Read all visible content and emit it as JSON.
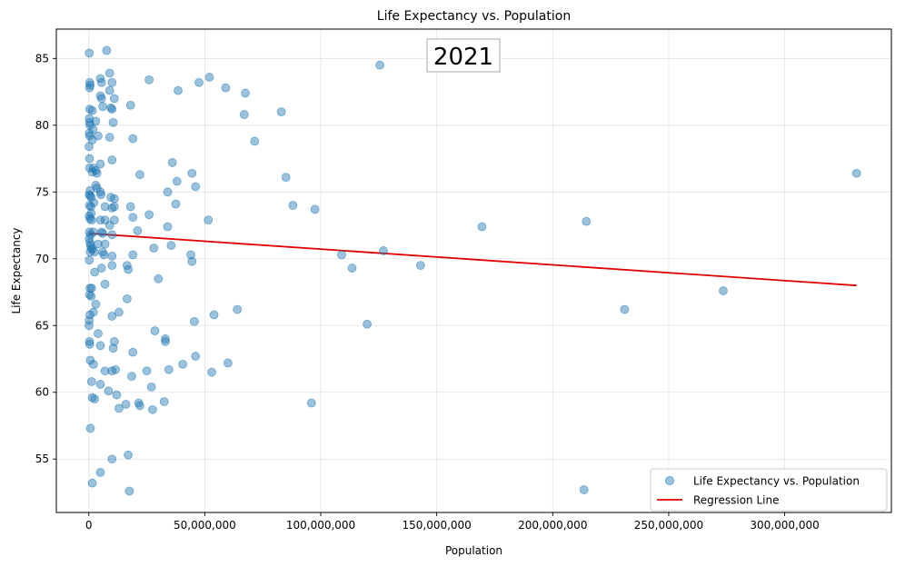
{
  "chart_data": {
    "type": "scatter",
    "title": "Life Expectancy vs. Population",
    "xlabel": "Population",
    "ylabel": "Life Expectancy",
    "annotation": "2021",
    "xlim": [
      -14000000,
      346000000
    ],
    "ylim": [
      51,
      87.2
    ],
    "xticks": [
      {
        "value": 0,
        "label": "0"
      },
      {
        "value": 50000000,
        "label": "50,000,000"
      },
      {
        "value": 100000000,
        "label": "100,000,000"
      },
      {
        "value": 150000000,
        "label": "150,000,000"
      },
      {
        "value": 200000000,
        "label": "200,000,000"
      },
      {
        "value": 250000000,
        "label": "250,000,000"
      },
      {
        "value": 300000000,
        "label": "300,000,000"
      }
    ],
    "yticks": [
      {
        "value": 55,
        "label": "55"
      },
      {
        "value": 60,
        "label": "60"
      },
      {
        "value": 65,
        "label": "65"
      },
      {
        "value": 70,
        "label": "70"
      },
      {
        "value": 75,
        "label": "75"
      },
      {
        "value": 80,
        "label": "80"
      },
      {
        "value": 85,
        "label": "85"
      }
    ],
    "grid": true,
    "legend": {
      "placement": "bottom-right",
      "entries": [
        {
          "label": "Life Expectancy vs. Population",
          "kind": "marker",
          "color": "#1f77b4"
        },
        {
          "label": "Regression Line",
          "kind": "line",
          "color": "#e00000"
        }
      ]
    },
    "series": [
      {
        "name": "Life Expectancy vs. Population",
        "kind": "scatter",
        "color": "#1f77b4",
        "points": [
          [
            200000,
            85.4
          ],
          [
            7700000,
            85.6
          ],
          [
            400000,
            83.2
          ],
          [
            300000,
            82.8
          ],
          [
            600000,
            83.0
          ],
          [
            5000000,
            83.5
          ],
          [
            5500000,
            83.2
          ],
          [
            9000000,
            83.9
          ],
          [
            10000000,
            83.2
          ],
          [
            9000000,
            82.6
          ],
          [
            5000000,
            82.2
          ],
          [
            5500000,
            82.0
          ],
          [
            11000000,
            82.0
          ],
          [
            6000000,
            81.4
          ],
          [
            9500000,
            81.3
          ],
          [
            10000000,
            81.2
          ],
          [
            18000000,
            81.5
          ],
          [
            400000,
            81.2
          ],
          [
            1500000,
            81.1
          ],
          [
            200000,
            80.5
          ],
          [
            300000,
            80.2
          ],
          [
            500000,
            80.0
          ],
          [
            3000000,
            80.3
          ],
          [
            10500000,
            80.2
          ],
          [
            1800000,
            79.7
          ],
          [
            200000,
            79.4
          ],
          [
            400000,
            79.2
          ],
          [
            4000000,
            79.2
          ],
          [
            9000000,
            79.1
          ],
          [
            1500000,
            78.9
          ],
          [
            19000000,
            79.0
          ],
          [
            100000,
            78.4
          ],
          [
            300000,
            77.5
          ],
          [
            5000000,
            77.1
          ],
          [
            10000000,
            77.4
          ],
          [
            300000,
            76.8
          ],
          [
            2000000,
            76.8
          ],
          [
            3000000,
            76.6
          ],
          [
            3500000,
            76.4
          ],
          [
            22000000,
            76.3
          ],
          [
            1500000,
            76.5
          ],
          [
            500000,
            75.1
          ],
          [
            200000,
            74.8
          ],
          [
            600000,
            74.7
          ],
          [
            1000000,
            74.6
          ],
          [
            3000000,
            75.5
          ],
          [
            5000000,
            75.0
          ],
          [
            5200000,
            74.8
          ],
          [
            9500000,
            74.6
          ],
          [
            11000000,
            74.5
          ],
          [
            300000,
            74.0
          ],
          [
            900000,
            73.9
          ],
          [
            2200000,
            74.2
          ],
          [
            3500000,
            75.3
          ],
          [
            11000000,
            73.9
          ],
          [
            10000000,
            73.8
          ],
          [
            7000000,
            73.9
          ],
          [
            18000000,
            73.9
          ],
          [
            200000,
            73.2
          ],
          [
            500000,
            73.0
          ],
          [
            1000000,
            73.4
          ],
          [
            1200000,
            72.9
          ],
          [
            5000000,
            72.9
          ],
          [
            7000000,
            72.9
          ],
          [
            11000000,
            72.9
          ],
          [
            9000000,
            72.5
          ],
          [
            19000000,
            73.1
          ],
          [
            300000,
            72.0
          ],
          [
            800000,
            71.8
          ],
          [
            2000000,
            72.0
          ],
          [
            5500000,
            72.0
          ],
          [
            6000000,
            71.9
          ],
          [
            10000000,
            71.8
          ],
          [
            21000000,
            72.1
          ],
          [
            200000,
            71.5
          ],
          [
            500000,
            71.2
          ],
          [
            800000,
            71.0
          ],
          [
            1000000,
            70.8
          ],
          [
            600000,
            70.5
          ],
          [
            1500000,
            70.7
          ],
          [
            2500000,
            70.5
          ],
          [
            4000000,
            71.1
          ],
          [
            7000000,
            71.1
          ],
          [
            6000000,
            70.5
          ],
          [
            6500000,
            70.3
          ],
          [
            10000000,
            70.2
          ],
          [
            200000,
            69.9
          ],
          [
            2500000,
            69.0
          ],
          [
            5500000,
            69.3
          ],
          [
            10000000,
            69.5
          ],
          [
            16500000,
            69.5
          ],
          [
            19000000,
            70.3
          ],
          [
            17000000,
            69.2
          ],
          [
            500000,
            67.8
          ],
          [
            1200000,
            67.8
          ],
          [
            300000,
            67.3
          ],
          [
            1000000,
            67.2
          ],
          [
            7000000,
            68.1
          ],
          [
            16500000,
            67.0
          ],
          [
            500000,
            65.8
          ],
          [
            200000,
            65.4
          ],
          [
            100000,
            65.0
          ],
          [
            2000000,
            66.0
          ],
          [
            3000000,
            66.6
          ],
          [
            10000000,
            65.7
          ],
          [
            13000000,
            66.0
          ],
          [
            300000,
            63.8
          ],
          [
            400000,
            63.6
          ],
          [
            4000000,
            64.4
          ],
          [
            5000000,
            63.5
          ],
          [
            10500000,
            63.3
          ],
          [
            11000000,
            63.8
          ],
          [
            600000,
            62.4
          ],
          [
            2000000,
            62.1
          ],
          [
            19000000,
            63.0
          ],
          [
            7000000,
            61.6
          ],
          [
            10000000,
            61.6
          ],
          [
            11500000,
            61.7
          ],
          [
            18500000,
            61.2
          ],
          [
            1200000,
            60.8
          ],
          [
            5000000,
            60.6
          ],
          [
            700000,
            57.3
          ],
          [
            1500000,
            59.6
          ],
          [
            2500000,
            59.5
          ],
          [
            8500000,
            60.1
          ],
          [
            12000000,
            59.8
          ],
          [
            13000000,
            58.8
          ],
          [
            16000000,
            59.1
          ],
          [
            17000000,
            55.3
          ],
          [
            10000000,
            55.0
          ],
          [
            5000000,
            54.0
          ],
          [
            1500000,
            53.2
          ],
          [
            17500000,
            52.6
          ],
          [
            21500000,
            59.2
          ],
          [
            22000000,
            59.0
          ],
          [
            27000000,
            60.4
          ],
          [
            25000000,
            61.6
          ],
          [
            27500000,
            58.7
          ],
          [
            28500000,
            64.6
          ],
          [
            30000000,
            68.5
          ],
          [
            33000000,
            64.0
          ],
          [
            33000000,
            63.8
          ],
          [
            32500000,
            59.3
          ],
          [
            34500000,
            61.7
          ],
          [
            28000000,
            70.8
          ],
          [
            34000000,
            72.4
          ],
          [
            34000000,
            75.0
          ],
          [
            35500000,
            71.0
          ],
          [
            36000000,
            77.2
          ],
          [
            37500000,
            74.1
          ],
          [
            38000000,
            75.8
          ],
          [
            38500000,
            82.6
          ],
          [
            26000000,
            83.4
          ],
          [
            26000000,
            73.3
          ],
          [
            40500000,
            62.1
          ],
          [
            44000000,
            70.3
          ],
          [
            44500000,
            69.8
          ],
          [
            44500000,
            76.4
          ],
          [
            45500000,
            65.3
          ],
          [
            46000000,
            75.4
          ],
          [
            46000000,
            62.7
          ],
          [
            47500000,
            83.2
          ],
          [
            51500000,
            72.9
          ],
          [
            52000000,
            83.6
          ],
          [
            53000000,
            61.5
          ],
          [
            54000000,
            65.8
          ],
          [
            59000000,
            82.8
          ],
          [
            60000000,
            62.2
          ],
          [
            64000000,
            66.2
          ],
          [
            67000000,
            80.8
          ],
          [
            67500000,
            82.4
          ],
          [
            71500000,
            78.8
          ],
          [
            83000000,
            81.0
          ],
          [
            85000000,
            76.1
          ],
          [
            88000000,
            74.0
          ],
          [
            96000000,
            59.2
          ],
          [
            97500000,
            73.7
          ],
          [
            109000000,
            70.3
          ],
          [
            113500000,
            69.3
          ],
          [
            120000000,
            65.1
          ],
          [
            125500000,
            84.5
          ],
          [
            127000000,
            70.6
          ],
          [
            143000000,
            69.5
          ],
          [
            169500000,
            72.4
          ],
          [
            213500000,
            52.7
          ],
          [
            214500000,
            72.8
          ],
          [
            231000000,
            66.2
          ],
          [
            273500000,
            67.6
          ],
          [
            331000000,
            76.4
          ]
        ]
      },
      {
        "name": "Regression Line",
        "kind": "line",
        "color": "#e00000",
        "points": [
          [
            0,
            71.9
          ],
          [
            331000000,
            68.0
          ]
        ]
      }
    ]
  }
}
